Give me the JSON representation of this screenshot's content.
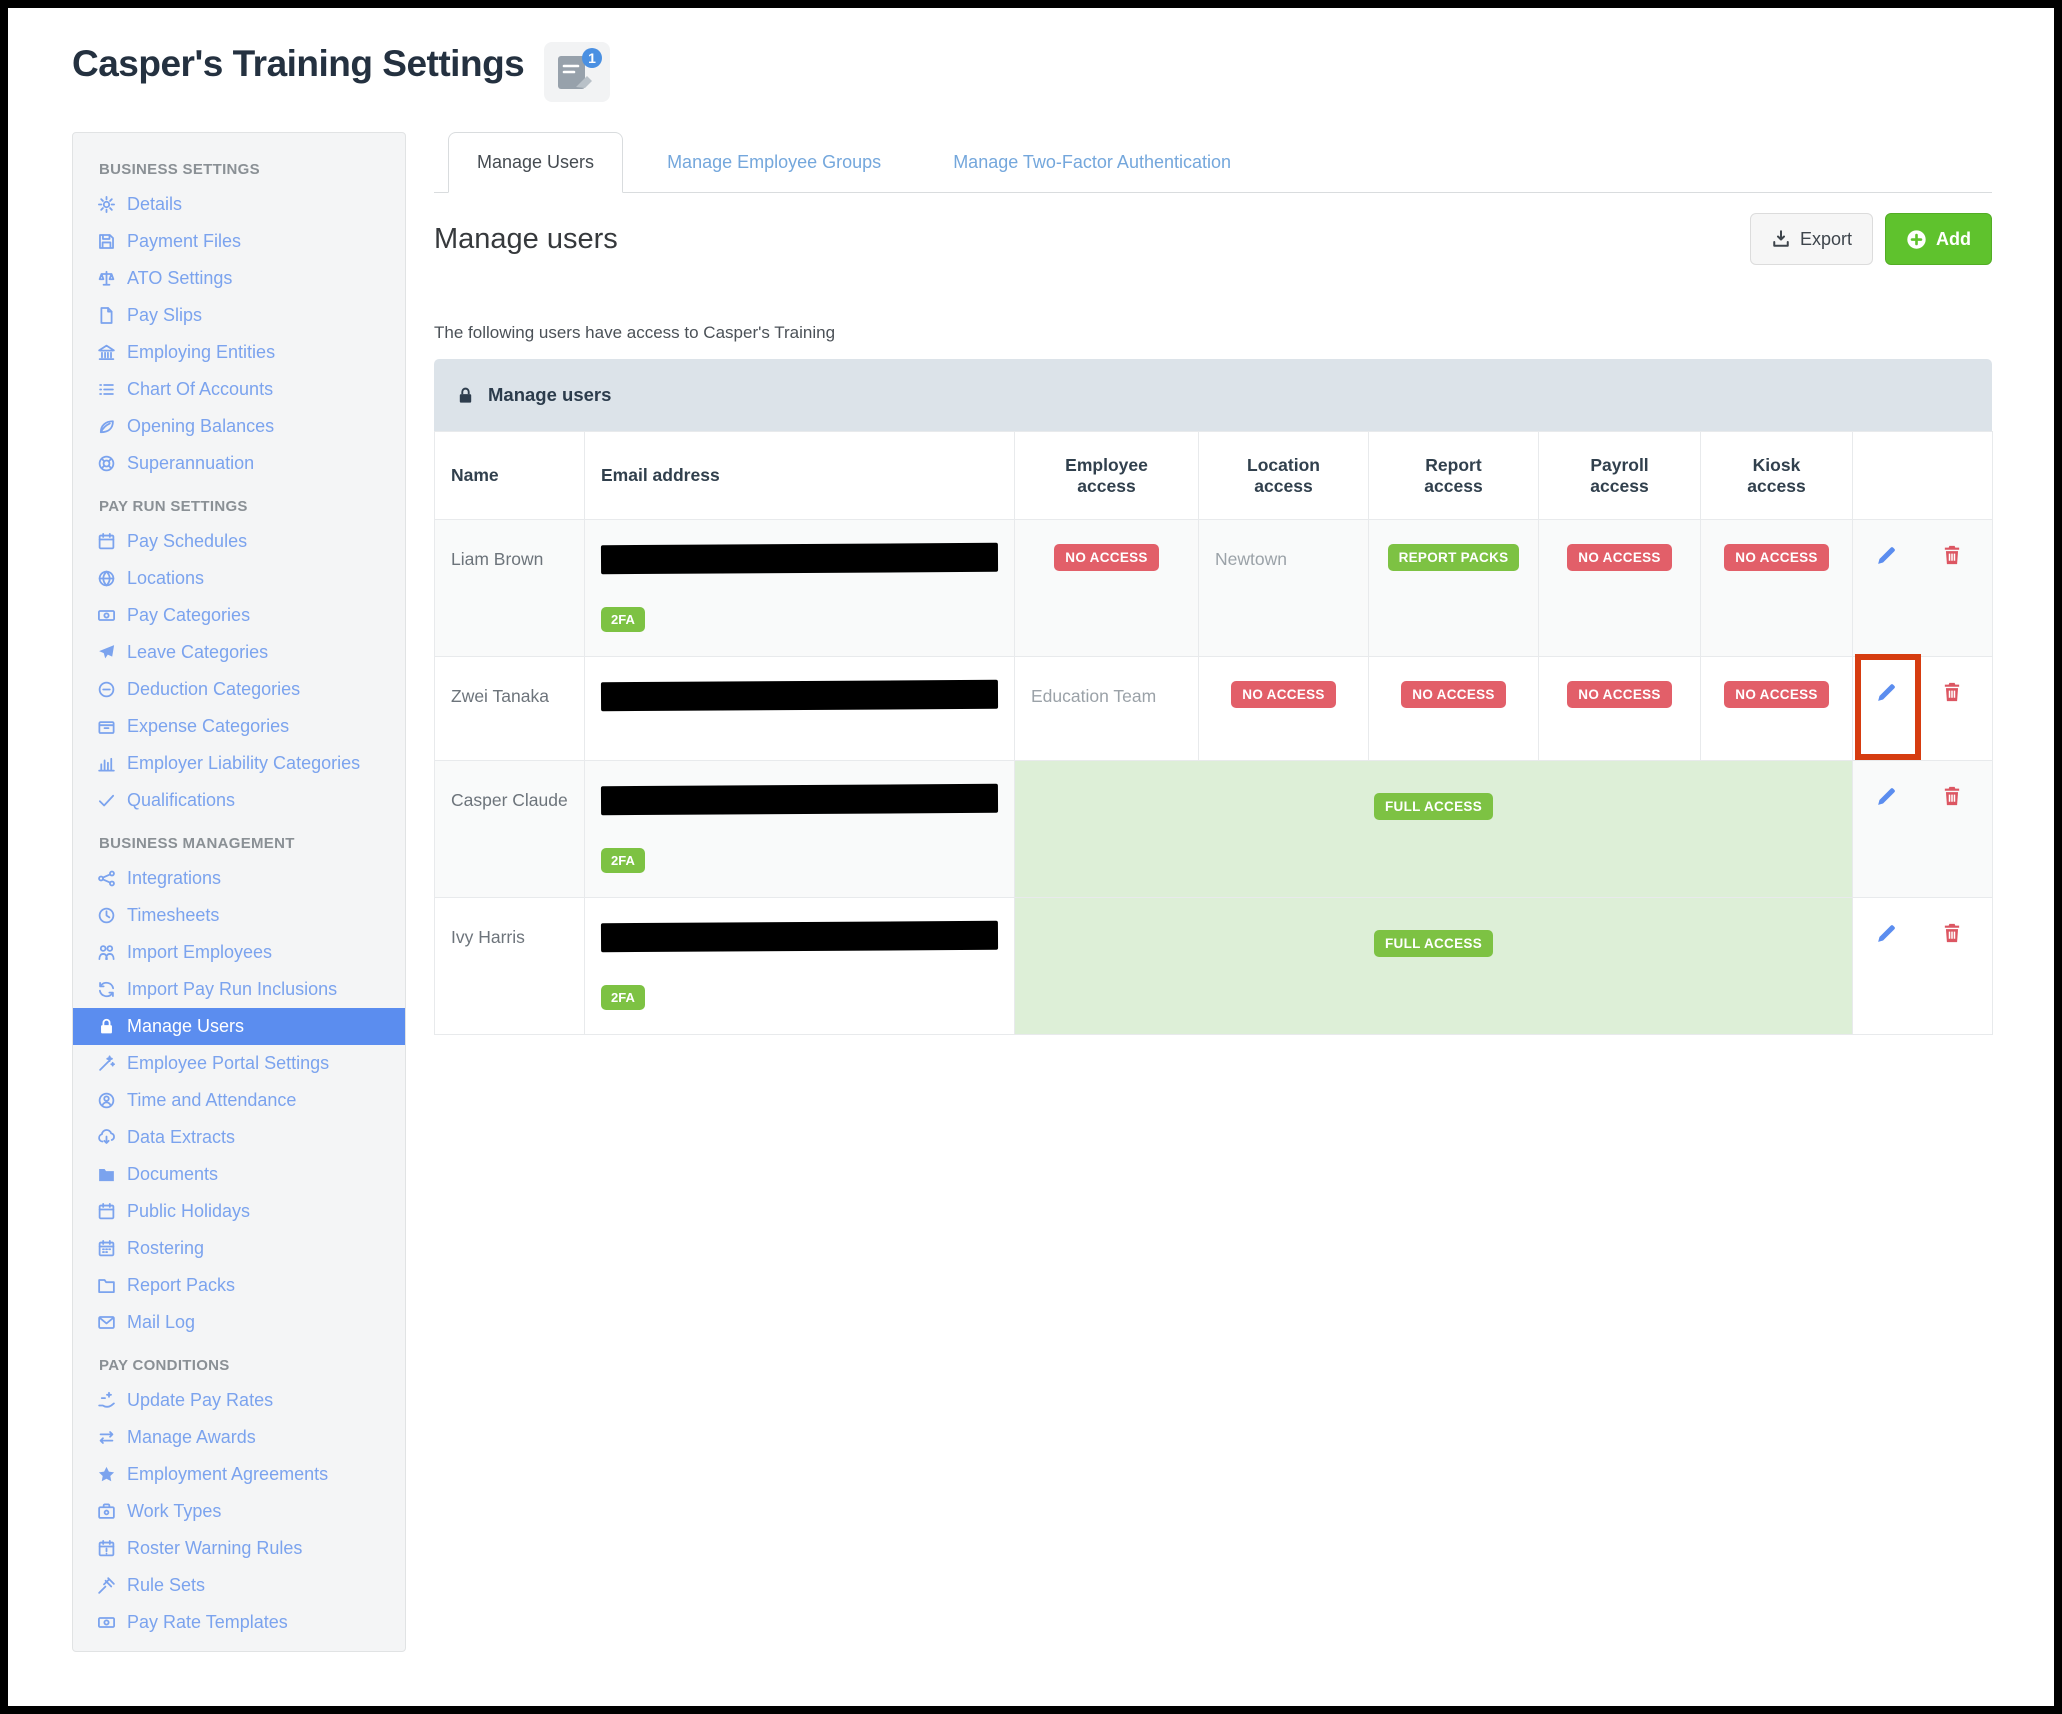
{
  "window": {
    "title": "Casper's Training Settings",
    "notes_badge_count": "1"
  },
  "sidebar": {
    "sections": [
      {
        "header": "BUSINESS SETTINGS",
        "items": [
          {
            "label": "Details",
            "icon": "gear"
          },
          {
            "label": "Payment Files",
            "icon": "save"
          },
          {
            "label": "ATO Settings",
            "icon": "scales"
          },
          {
            "label": "Pay Slips",
            "icon": "file"
          },
          {
            "label": "Employing Entities",
            "icon": "bank"
          },
          {
            "label": "Chart Of Accounts",
            "icon": "list"
          },
          {
            "label": "Opening Balances",
            "icon": "leaf"
          },
          {
            "label": "Superannuation",
            "icon": "lifering"
          }
        ]
      },
      {
        "header": "PAY RUN SETTINGS",
        "items": [
          {
            "label": "Pay Schedules",
            "icon": "calendar"
          },
          {
            "label": "Locations",
            "icon": "globe"
          },
          {
            "label": "Pay Categories",
            "icon": "money"
          },
          {
            "label": "Leave Categories",
            "icon": "plane"
          },
          {
            "label": "Deduction Categories",
            "icon": "minus-circle"
          },
          {
            "label": "Expense Categories",
            "icon": "box"
          },
          {
            "label": "Employer Liability Categories",
            "icon": "bar-chart"
          },
          {
            "label": "Qualifications",
            "icon": "check"
          }
        ]
      },
      {
        "header": "BUSINESS MANAGEMENT",
        "items": [
          {
            "label": "Integrations",
            "icon": "share"
          },
          {
            "label": "Timesheets",
            "icon": "clock"
          },
          {
            "label": "Import Employees",
            "icon": "people"
          },
          {
            "label": "Import Pay Run Inclusions",
            "icon": "refresh"
          },
          {
            "label": "Manage Users",
            "icon": "lock",
            "selected": true
          },
          {
            "label": "Employee Portal Settings",
            "icon": "wand"
          },
          {
            "label": "Time and Attendance",
            "icon": "user-circle"
          },
          {
            "label": "Data Extracts",
            "icon": "cloud-download"
          },
          {
            "label": "Documents",
            "icon": "folder"
          },
          {
            "label": "Public Holidays",
            "icon": "calendar"
          },
          {
            "label": "Rostering",
            "icon": "calendar-grid"
          },
          {
            "label": "Report Packs",
            "icon": "folder-open"
          },
          {
            "label": "Mail Log",
            "icon": "envelope"
          }
        ]
      },
      {
        "header": "PAY CONDITIONS",
        "items": [
          {
            "label": "Update Pay Rates",
            "icon": "hand-coins"
          },
          {
            "label": "Manage Awards",
            "icon": "arrows-lr"
          },
          {
            "label": "Employment Agreements",
            "icon": "star"
          },
          {
            "label": "Work Types",
            "icon": "briefcase"
          },
          {
            "label": "Roster Warning Rules",
            "icon": "calendar-warning"
          },
          {
            "label": "Rule Sets",
            "icon": "gavel"
          },
          {
            "label": "Pay Rate Templates",
            "icon": "money"
          }
        ]
      }
    ]
  },
  "tabs": [
    {
      "label": "Manage Users",
      "active": true
    },
    {
      "label": "Manage Employee Groups",
      "active": false
    },
    {
      "label": "Manage Two-Factor Authentication",
      "active": false
    }
  ],
  "toolbar": {
    "export_label": "Export",
    "add_label": "Add"
  },
  "main": {
    "heading": "Manage users",
    "description": "The following users have access to Casper's Training",
    "panel_title": "Manage users"
  },
  "table": {
    "columns": [
      "Name",
      "Email address",
      "Employee access",
      "Location access",
      "Report access",
      "Payroll access",
      "Kiosk access",
      ""
    ],
    "two_fa_label": "2FA",
    "rows": [
      {
        "name": "Liam Brown",
        "email_redacted": true,
        "two_fa": true,
        "access": [
          {
            "style": "red",
            "label": "NO ACCESS"
          },
          {
            "style": "text",
            "label": "Newtown"
          },
          {
            "style": "green",
            "label": "REPORT PACKS"
          },
          {
            "style": "red",
            "label": "NO ACCESS"
          },
          {
            "style": "red",
            "label": "NO ACCESS"
          }
        ]
      },
      {
        "name": "Zwei Tanaka",
        "email_redacted": true,
        "two_fa": false,
        "access": [
          {
            "style": "text",
            "label": "Education Team"
          },
          {
            "style": "red",
            "label": "NO ACCESS"
          },
          {
            "style": "red",
            "label": "NO ACCESS"
          },
          {
            "style": "red",
            "label": "NO ACCESS"
          },
          {
            "style": "red",
            "label": "NO ACCESS"
          }
        ],
        "annotated": true
      },
      {
        "name": "Casper Claude",
        "email_redacted": true,
        "two_fa": true,
        "full_access": "FULL ACCESS"
      },
      {
        "name": "Ivy Harris",
        "email_redacted": true,
        "two_fa": true,
        "full_access": "FULL ACCESS"
      }
    ]
  },
  "annotation": {
    "color": "#d63c10",
    "target": "edit button of row Zwei Tanaka"
  },
  "colors": {
    "selected_item_bg": "#5b8def",
    "sidebar_link": "#7ba3ee",
    "tab_link": "#74a7dc",
    "badge_red": "#e25f69",
    "badge_green": "#7dc243",
    "add_button": "#5fc22d",
    "full_access_row_bg": "#ddefd7",
    "panel_header_bg": "#dce3e9",
    "annotation_box": "#d63c10"
  }
}
